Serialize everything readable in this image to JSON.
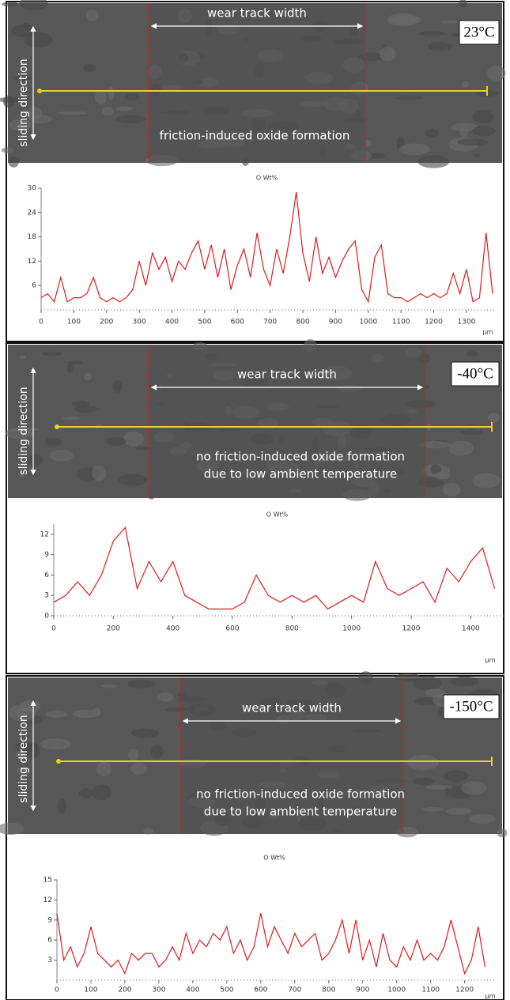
{
  "chart_data": [
    {
      "type": "line",
      "title": "O Wt%",
      "x_label": "μm",
      "image_labels": {
        "temperature": "23°C",
        "track": "wear track width",
        "direction": "sliding direction",
        "notes": [
          "friction-induced oxide formation"
        ]
      },
      "x": [
        0,
        20,
        40,
        60,
        80,
        100,
        120,
        140,
        160,
        180,
        200,
        220,
        240,
        260,
        280,
        300,
        320,
        340,
        360,
        380,
        400,
        420,
        440,
        460,
        480,
        500,
        520,
        540,
        560,
        580,
        600,
        620,
        640,
        660,
        680,
        700,
        720,
        740,
        760,
        780,
        800,
        820,
        840,
        860,
        880,
        900,
        920,
        940,
        960,
        980,
        1000,
        1020,
        1040,
        1060,
        1080,
        1100,
        1120,
        1140,
        1160,
        1180,
        1200,
        1220,
        1240,
        1260,
        1280,
        1300,
        1320,
        1340,
        1360,
        1380
      ],
      "values": [
        3,
        4,
        2,
        8,
        2,
        3,
        3,
        4,
        8,
        3,
        2,
        3,
        2,
        3,
        5,
        12,
        6,
        14,
        10,
        13,
        7,
        12,
        10,
        14,
        17,
        10,
        16,
        8,
        15,
        5,
        11,
        15,
        8,
        19,
        10,
        6,
        15,
        9,
        18,
        29,
        14,
        7,
        18,
        9,
        13,
        8,
        12,
        15,
        17,
        5,
        2,
        13,
        16,
        4,
        3,
        3,
        2,
        3,
        4,
        3,
        4,
        3,
        4,
        9,
        4,
        10,
        2,
        3,
        19,
        4
      ],
      "color": "#e31a1c",
      "xlim": [
        0,
        1380
      ],
      "ylim": [
        0,
        30
      ],
      "xticks": [
        0,
        100,
        200,
        300,
        400,
        500,
        600,
        700,
        800,
        900,
        1000,
        1100,
        1200,
        1300
      ],
      "yticks": [
        6,
        12,
        18,
        24,
        30
      ]
    },
    {
      "type": "line",
      "title": "O Wt%",
      "x_label": "μm",
      "image_labels": {
        "temperature": "-40°C",
        "track": "wear track width",
        "direction": "sliding direction",
        "notes": [
          "no friction-induced oxide formation",
          "due to low ambient temperature"
        ]
      },
      "x": [
        0,
        40,
        80,
        120,
        160,
        200,
        240,
        280,
        320,
        360,
        400,
        440,
        480,
        520,
        560,
        600,
        640,
        680,
        720,
        760,
        800,
        840,
        880,
        920,
        960,
        1000,
        1040,
        1080,
        1120,
        1160,
        1200,
        1240,
        1280,
        1320,
        1360,
        1400,
        1440,
        1480
      ],
      "values": [
        2,
        3,
        5,
        3,
        6,
        11,
        13,
        4,
        8,
        5,
        8,
        3,
        2,
        1,
        1,
        1,
        2,
        6,
        3,
        2,
        3,
        2,
        3,
        1,
        2,
        3,
        2,
        8,
        4,
        3,
        4,
        5,
        2,
        7,
        5,
        8,
        10,
        4
      ],
      "color": "#e31a1c",
      "xlim": [
        0,
        1500
      ],
      "ylim": [
        0,
        13.5
      ],
      "xticks": [
        0,
        200,
        400,
        600,
        800,
        1000,
        1200,
        1400
      ],
      "yticks": [
        0,
        3,
        6,
        9,
        12
      ]
    },
    {
      "type": "line",
      "title": "O Wt%",
      "x_label": "μm",
      "image_labels": {
        "temperature": "-150°C",
        "track": "wear track width",
        "direction": "sliding direction",
        "notes": [
          "no friction-induced oxide formation",
          "due to low ambient temperature"
        ]
      },
      "x": [
        0,
        20,
        40,
        60,
        80,
        100,
        120,
        140,
        160,
        180,
        200,
        220,
        240,
        260,
        280,
        300,
        320,
        340,
        360,
        380,
        400,
        420,
        440,
        460,
        480,
        500,
        520,
        540,
        560,
        580,
        600,
        620,
        640,
        660,
        680,
        700,
        720,
        740,
        760,
        780,
        800,
        820,
        840,
        860,
        880,
        900,
        920,
        940,
        960,
        980,
        1000,
        1020,
        1040,
        1060,
        1080,
        1100,
        1120,
        1140,
        1160,
        1180,
        1200,
        1220,
        1240,
        1260
      ],
      "values": [
        10,
        3,
        5,
        2,
        4,
        8,
        4,
        3,
        2,
        3,
        1,
        4,
        3,
        4,
        4,
        2,
        3,
        5,
        3,
        7,
        4,
        6,
        5,
        7,
        6,
        8,
        4,
        6,
        3,
        5,
        10,
        5,
        8,
        6,
        4,
        7,
        5,
        6,
        7,
        3,
        4,
        6,
        9,
        4,
        9,
        3,
        6,
        2,
        7,
        3,
        2,
        5,
        3,
        6,
        3,
        4,
        3,
        5,
        9,
        5,
        1,
        3,
        8,
        2
      ],
      "color": "#e31a1c",
      "xlim": [
        0,
        1280
      ],
      "ylim": [
        0,
        15
      ],
      "xticks": [
        0,
        100,
        200,
        300,
        400,
        500,
        600,
        700,
        800,
        900,
        1000,
        1100,
        1200
      ],
      "yticks": [
        3,
        6,
        9,
        12,
        15
      ]
    }
  ]
}
